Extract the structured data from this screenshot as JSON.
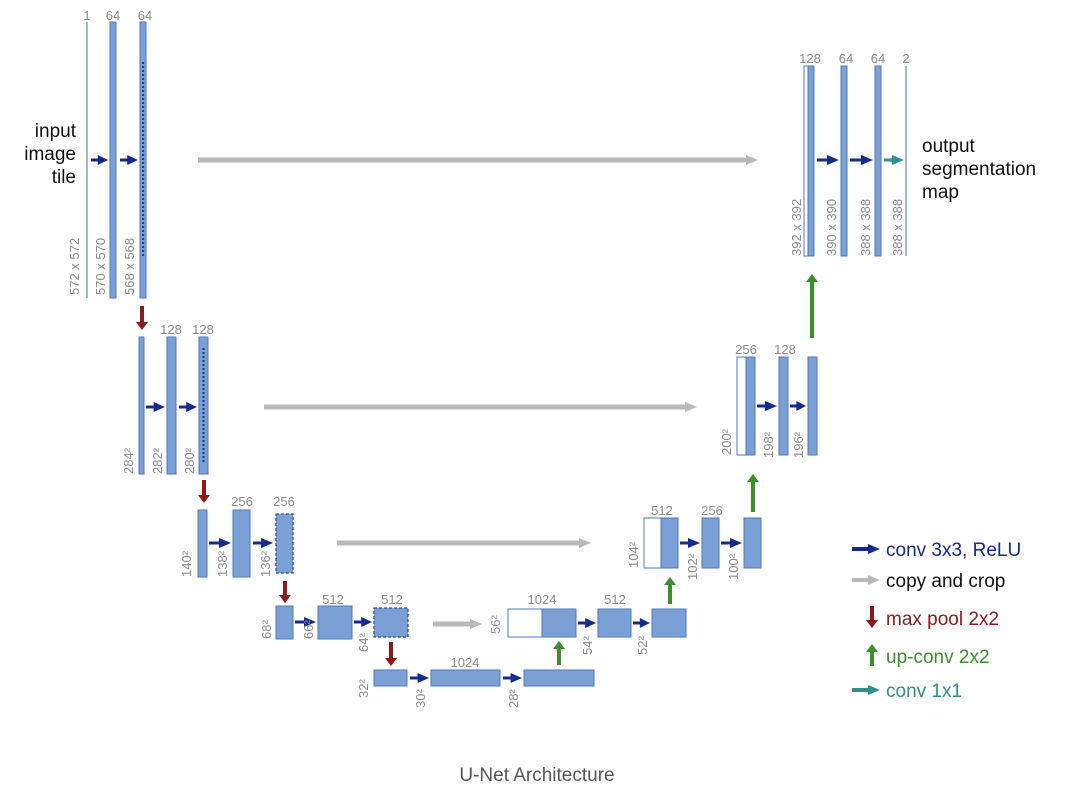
{
  "colors": {
    "block_fill": "#7ba0d6",
    "block_stroke": "#4f79b8",
    "conv": "#142a8c",
    "copy": "#b9b9b9",
    "pool": "#8b1a1a",
    "upconv": "#3d8f2b",
    "conv1x1": "#2f8f8a",
    "label_gray": "#8a8a8a"
  },
  "input_label": [
    "input",
    "image",
    "tile"
  ],
  "output_label": [
    "output",
    "segmentation",
    "map"
  ],
  "channel_labels": {
    "c_in": "1",
    "c_e1a": "64",
    "c_e1b": "64",
    "c_e2a": "128",
    "c_e2b": "128",
    "c_e3a": "256",
    "c_e3b": "256",
    "c_e4a": "512",
    "c_e4b": "512",
    "c_b": "1024",
    "c_d4in": "1024",
    "c_d4": "512",
    "c_d3in": "512",
    "c_d3": "256",
    "c_d2in": "256",
    "c_d2": "128",
    "c_d1in": "128",
    "c_d1a": "64",
    "c_d1b": "64",
    "c_out": "2"
  },
  "size_labels": {
    "s_in": "572 x 572",
    "s_e1a": "570 x 570",
    "s_e1b": "568 x 568",
    "s_e2in": "284²",
    "s_e2a": "282²",
    "s_e2b": "280²",
    "s_e3in": "140²",
    "s_e3a": "138²",
    "s_e3b": "136²",
    "s_e4in": "68²",
    "s_e4a": "66²",
    "s_e4b": "64²",
    "s_bin": "32²",
    "s_ba": "30²",
    "s_bb": "28²",
    "s_d4in": "56²",
    "s_d4a": "54²",
    "s_d4b": "52²",
    "s_d3in": "104²",
    "s_d3a": "102²",
    "s_d3b": "100²",
    "s_d2in": "200²",
    "s_d2a": "198²",
    "s_d2b": "196²",
    "s_d1in": "392 x 392",
    "s_d1a": "390 x 390",
    "s_d1b": "388 x 388",
    "s_out": "388 x 388"
  },
  "legend": [
    {
      "label": "conv 3x3, ReLU",
      "kind": "conv"
    },
    {
      "label": "copy and crop",
      "kind": "copy"
    },
    {
      "label": "max pool 2x2",
      "kind": "pool"
    },
    {
      "label": "up-conv 2x2",
      "kind": "upconv"
    },
    {
      "label": "conv 1x1",
      "kind": "conv1x1"
    }
  ],
  "caption": "U-Net Architecture"
}
